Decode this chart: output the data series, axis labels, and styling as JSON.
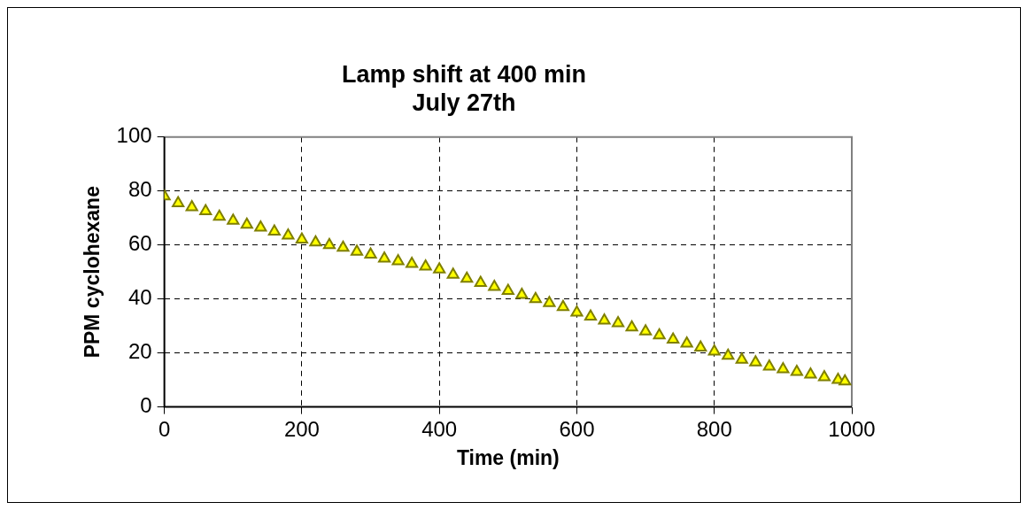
{
  "chart_data": {
    "type": "scatter",
    "title": [
      "Lamp shift at 400 min",
      "July 27th"
    ],
    "xlabel": "Time (min)",
    "ylabel": "PPM cyclohexane",
    "xlim": [
      0,
      1000
    ],
    "xticks": [
      0,
      200,
      400,
      600,
      800,
      1000
    ],
    "ylim": [
      0,
      100
    ],
    "yticks": [
      0,
      20,
      40,
      60,
      80,
      100
    ],
    "grid": true,
    "marker": "triangle",
    "legend": false,
    "series": [
      {
        "color": "#ffff00",
        "x": [
          0,
          20,
          40,
          60,
          80,
          100,
          120,
          140,
          160,
          180,
          200,
          220,
          240,
          260,
          280,
          300,
          320,
          340,
          360,
          380,
          400,
          420,
          440,
          460,
          480,
          500,
          520,
          540,
          560,
          580,
          600,
          620,
          640,
          660,
          680,
          700,
          720,
          740,
          760,
          780,
          800,
          820,
          840,
          860,
          880,
          900,
          920,
          940,
          960,
          980,
          990
        ],
        "values": [
          78,
          75.5,
          74,
          72.5,
          70.5,
          69,
          67.5,
          66.5,
          65,
          63.5,
          62,
          61,
          60,
          59,
          57.5,
          56.5,
          55,
          54,
          53,
          52,
          51,
          49,
          47.5,
          46,
          44.5,
          43,
          41.5,
          40,
          38.5,
          37,
          35,
          33.5,
          32,
          31,
          29.5,
          28,
          26.5,
          25,
          23.5,
          22,
          20.5,
          19,
          17.5,
          16.5,
          15,
          14,
          13,
          12,
          11,
          10,
          9.5
        ]
      }
    ]
  }
}
